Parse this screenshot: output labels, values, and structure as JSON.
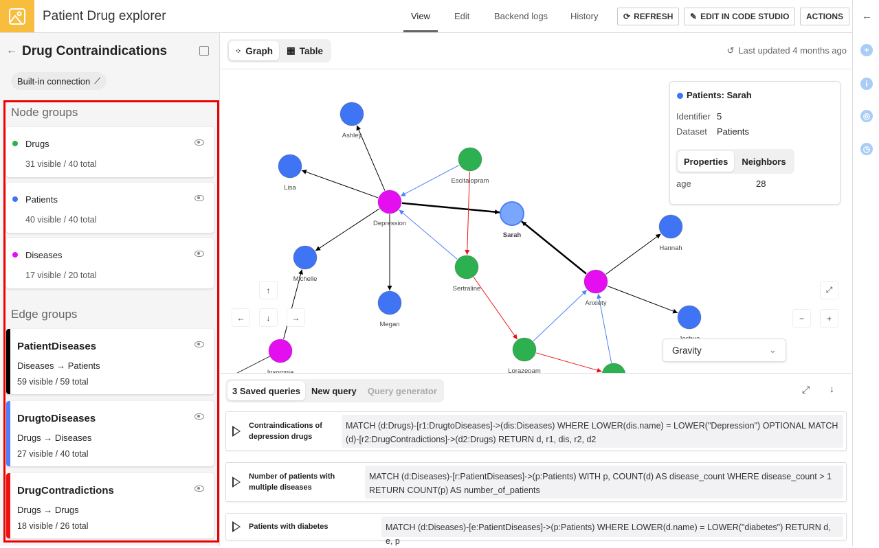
{
  "app": {
    "title": "Patient Drug explorer",
    "logo_icon": "image-icon",
    "accent": "#f8bd3c"
  },
  "nav": {
    "tabs": [
      "View",
      "Edit",
      "Backend logs",
      "History"
    ],
    "active": "View"
  },
  "toolbar": {
    "refresh": "REFRESH",
    "edit_code": "EDIT IN CODE STUDIO",
    "actions": "ACTIONS"
  },
  "sidebar": {
    "title": "Drug Contraindications",
    "connection": "Built-in connection",
    "node_groups_title": "Node groups",
    "node_groups": [
      {
        "name": "Drugs",
        "count": "31 visible / 40 total",
        "color": "#2db050"
      },
      {
        "name": "Patients",
        "count": "40 visible / 40 total",
        "color": "#3f74f5"
      },
      {
        "name": "Diseases",
        "count": "17 visible / 20 total",
        "color": "#e40ef0"
      }
    ],
    "edge_groups_title": "Edge groups",
    "edge_groups": [
      {
        "name": "PatientDiseases",
        "relation": "Diseases → Patients",
        "count": "59 visible / 59 total",
        "color": "#000000"
      },
      {
        "name": "DrugtoDiseases",
        "relation": "Drugs → Diseases",
        "count": "27 visible / 40 total",
        "color": "#4f7ef7"
      },
      {
        "name": "DrugContradictions",
        "relation": "Drugs → Drugs",
        "count": "18 visible / 26 total",
        "color": "#ee1111"
      }
    ]
  },
  "view": {
    "graph_label": "Graph",
    "table_label": "Table",
    "active": "Graph",
    "last_updated": "Last updated 4 months ago"
  },
  "graph": {
    "nodes": [
      {
        "id": "Ashley",
        "group": "Patients"
      },
      {
        "id": "Lisa",
        "group": "Patients"
      },
      {
        "id": "Depression",
        "group": "Diseases"
      },
      {
        "id": "Escitalopram",
        "group": "Drugs"
      },
      {
        "id": "Sarah",
        "group": "Patients",
        "selected": true
      },
      {
        "id": "Hannah",
        "group": "Patients"
      },
      {
        "id": "Michelle",
        "group": "Patients"
      },
      {
        "id": "Sertraline",
        "group": "Drugs"
      },
      {
        "id": "Anxiety",
        "group": "Diseases"
      },
      {
        "id": "Megan",
        "group": "Patients"
      },
      {
        "id": "Joshua",
        "group": "Patients"
      },
      {
        "id": "Lorazepam",
        "group": "Drugs"
      },
      {
        "id": "Insomnia",
        "group": "Diseases"
      },
      {
        "id": "",
        "group": "Drugs"
      }
    ],
    "edges": [
      {
        "from": "Depression",
        "to": "Ashley",
        "group": "PatientDiseases"
      },
      {
        "from": "Depression",
        "to": "Lisa",
        "group": "PatientDiseases"
      },
      {
        "from": "Depression",
        "to": "Michelle",
        "group": "PatientDiseases"
      },
      {
        "from": "Depression",
        "to": "Megan",
        "group": "PatientDiseases"
      },
      {
        "from": "Depression",
        "to": "Sarah",
        "group": "PatientDiseases",
        "highlight": true
      },
      {
        "from": "Escitalopram",
        "to": "Depression",
        "group": "DrugtoDiseases"
      },
      {
        "from": "Escitalopram",
        "to": "Sertraline",
        "group": "DrugContradictions"
      },
      {
        "from": "Sertraline",
        "to": "Depression",
        "group": "DrugtoDiseases"
      },
      {
        "from": "Sertraline",
        "to": "Lorazepam",
        "group": "DrugContradictions"
      },
      {
        "from": "Lorazepam",
        "to": "Anxiety",
        "group": "DrugtoDiseases"
      },
      {
        "from": "Lorazepam",
        "to": "",
        "group": "DrugContradictions"
      },
      {
        "from": "",
        "to": "Anxiety",
        "group": "DrugtoDiseases"
      },
      {
        "from": "Anxiety",
        "to": "Sarah",
        "group": "PatientDiseases",
        "highlight": true
      },
      {
        "from": "Anxiety",
        "to": "Hannah",
        "group": "PatientDiseases"
      },
      {
        "from": "Anxiety",
        "to": "Joshua",
        "group": "PatientDiseases"
      },
      {
        "from": "Insomnia",
        "to": "Michelle",
        "group": "PatientDiseases"
      }
    ]
  },
  "details": {
    "title": "Patients: Sarah",
    "identifier_label": "Identifier",
    "identifier": "5",
    "dataset_label": "Dataset",
    "dataset": "Patients",
    "tabs": [
      "Properties",
      "Neighbors"
    ],
    "active_tab": "Properties",
    "properties": [
      {
        "key": "age",
        "value": "28"
      }
    ]
  },
  "controls": {
    "layout": "Gravity",
    "zoom_out": "−",
    "zoom_in": "+"
  },
  "queries": {
    "tabs": [
      "3 Saved queries",
      "New query",
      "Query generator"
    ],
    "active": "3 Saved queries",
    "items": [
      {
        "name": "Contraindications of depression drugs",
        "query": "MATCH (d:Drugs)-[r1:DrugtoDiseases]->(dis:Diseases) WHERE LOWER(dis.name) = LOWER(\"Depression\") OPTIONAL MATCH (d)-[r2:DrugContradictions]->(d2:Drugs) RETURN d, r1, dis, r2, d2"
      },
      {
        "name": "Number of patients with multiple diseases",
        "query": "MATCH (d:Diseases)-[r:PatientDiseases]->(p:Patients) WITH p, COUNT(d) AS disease_count WHERE disease_count > 1 RETURN COUNT(p) AS number_of_patients"
      },
      {
        "name": "Patients with diabetes",
        "query": "MATCH (d:Diseases)-[e:PatientDiseases]->(p:Patients) WHERE LOWER(d.name) = LOWER(\"diabetes\") RETURN d, e, p"
      }
    ]
  }
}
